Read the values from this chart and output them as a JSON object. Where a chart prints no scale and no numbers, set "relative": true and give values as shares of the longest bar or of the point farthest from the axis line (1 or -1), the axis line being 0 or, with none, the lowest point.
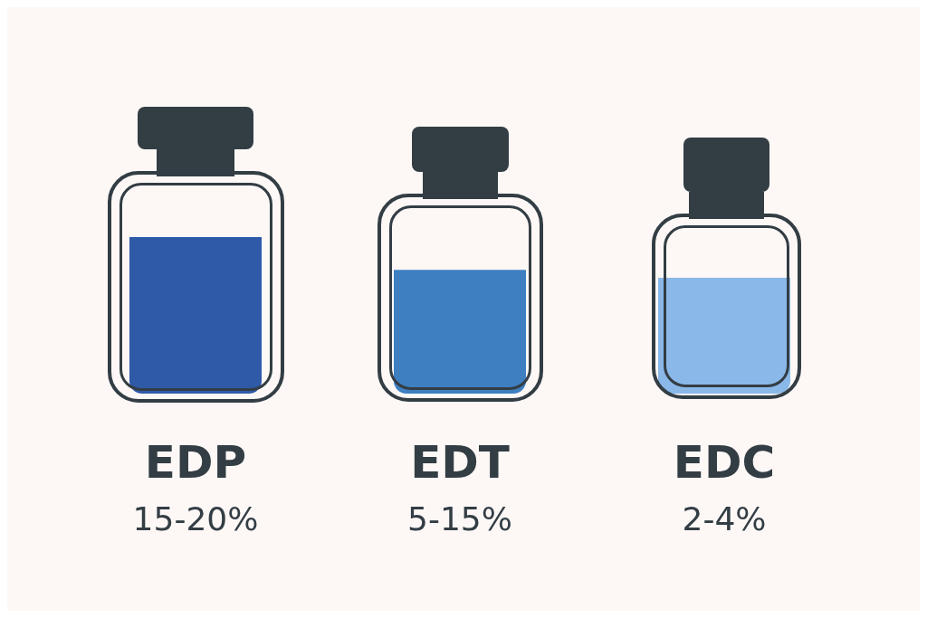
{
  "chart_data": {
    "type": "bar",
    "categories": [
      "EDP",
      "EDT",
      "EDC"
    ],
    "values": [
      1,
      0.79,
      0.74
    ],
    "colors": [
      "#2f5aa8",
      "#3d7fc1",
      "#8ab8e8"
    ],
    "relative": true,
    "annotations": [
      "15-20%",
      "5-15%",
      "2-4%"
    ]
  }
}
